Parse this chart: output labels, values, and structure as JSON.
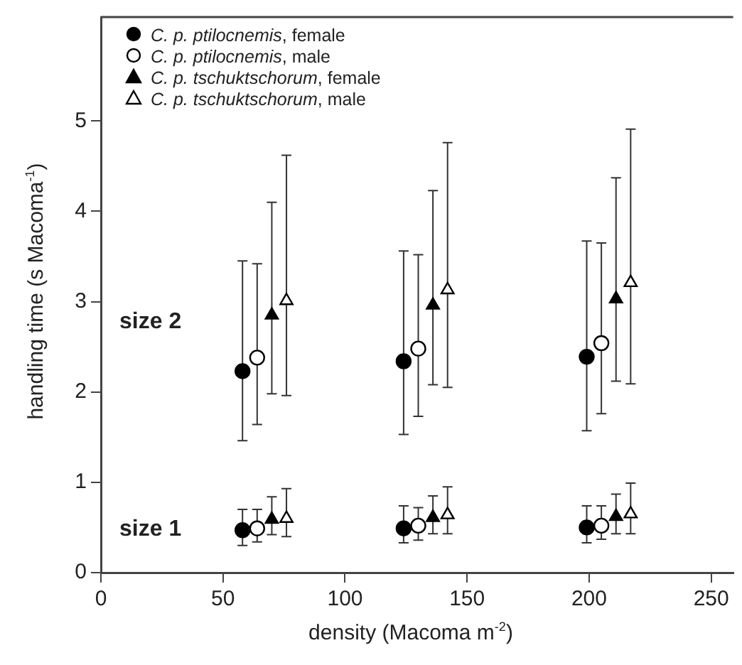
{
  "chart_data": {
    "type": "scatter",
    "xlabel": "density (Macoma m$^{-2}$)",
    "ylabel": "handling time (s Macoma$^{-1}$)",
    "xlim": [
      0,
      259
    ],
    "ylim": [
      0,
      6.15
    ],
    "xticks": [
      0,
      50,
      100,
      150,
      200,
      250
    ],
    "yticks": [
      0,
      1,
      2,
      3,
      4,
      5
    ],
    "grid": false,
    "legend": "top left",
    "annotations": [
      "size 2",
      "size 1"
    ],
    "series": [
      {
        "name": "C. p. ptilocnemis, female",
        "color": "#000000",
        "marker": "circle",
        "x": [
          58,
          124,
          199,
          58,
          124,
          199
        ],
        "values": [
          2.23,
          2.34,
          2.39,
          0.47,
          0.49,
          0.5
        ],
        "errors": [
          [
            1.46,
            3.45
          ],
          [
            1.53,
            3.56
          ],
          [
            1.57,
            3.67
          ],
          [
            0.3,
            0.7
          ],
          [
            0.33,
            0.74
          ],
          [
            0.33,
            0.74
          ]
        ]
      },
      {
        "name": "C. p. ptilocnemis, male",
        "color": "#ffffff",
        "marker": "circle",
        "x": [
          64,
          130,
          205,
          64,
          130,
          205
        ],
        "values": [
          2.38,
          2.48,
          2.54,
          0.49,
          0.52,
          0.52
        ],
        "errors": [
          [
            1.64,
            3.42
          ],
          [
            1.73,
            3.52
          ],
          [
            1.76,
            3.65
          ],
          [
            0.34,
            0.7
          ],
          [
            0.36,
            0.72
          ],
          [
            0.37,
            0.74
          ]
        ]
      },
      {
        "name": "C. p. tschuktschorum, female",
        "color": "#000000",
        "marker": "triangle",
        "x": [
          70,
          136,
          211,
          70,
          136,
          211
        ],
        "values": [
          2.85,
          2.96,
          3.03,
          0.59,
          0.61,
          0.62
        ],
        "errors": [
          [
            1.98,
            4.1
          ],
          [
            2.08,
            4.23
          ],
          [
            2.12,
            4.37
          ],
          [
            0.42,
            0.84
          ],
          [
            0.43,
            0.85
          ],
          [
            0.43,
            0.87
          ]
        ]
      },
      {
        "name": "C. p. tschuktschorum, male",
        "color": "#ffffff",
        "marker": "triangle",
        "x": [
          76,
          142,
          217,
          76,
          142,
          217
        ],
        "values": [
          3.01,
          3.13,
          3.21,
          0.6,
          0.64,
          0.65
        ],
        "errors": [
          [
            1.96,
            4.62
          ],
          [
            2.05,
            4.76
          ],
          [
            2.09,
            4.91
          ],
          [
            0.4,
            0.93
          ],
          [
            0.43,
            0.95
          ],
          [
            0.43,
            0.99
          ]
        ]
      }
    ]
  }
}
